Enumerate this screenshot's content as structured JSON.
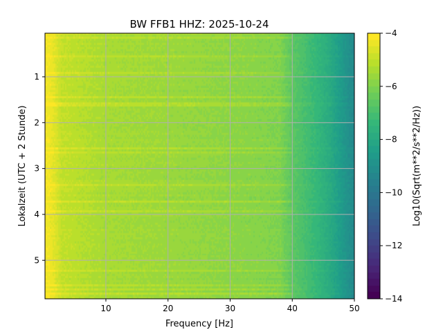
{
  "chart_data": {
    "type": "heatmap",
    "title": "BW FFB1  HHZ: 2025-10-24",
    "xlabel": "Frequency [Hz]",
    "ylabel": "Lokalzeit (UTC + 2 Stunde)",
    "xlim": [
      0.2,
      50
    ],
    "ylim": [
      5.84,
      0.05
    ],
    "xticks": [
      10,
      20,
      30,
      40,
      50
    ],
    "yticks": [
      1,
      2,
      3,
      4,
      5
    ],
    "grid": true,
    "colorbar": {
      "label": "Log10(Sqrt(m**2/s**2/Hz))",
      "range": [
        -14,
        -4
      ],
      "ticks": [
        -4,
        -6,
        -8,
        -10,
        -12,
        -14
      ],
      "tick_labels": [
        "−4",
        "−6",
        "−8",
        "−10",
        "−12",
        "−14"
      ],
      "colormap": "viridis",
      "levels": 40
    },
    "frequency_profile": {
      "frequency_hz": [
        0.2,
        1,
        2,
        3,
        5,
        8,
        10,
        15,
        20,
        25,
        30,
        35,
        38,
        40,
        42,
        44,
        46,
        48,
        50
      ],
      "log10_amplitude": [
        -4.3,
        -4.3,
        -4.6,
        -5.0,
        -5.1,
        -5.3,
        -5.4,
        -5.5,
        -5.6,
        -5.7,
        -5.8,
        -5.9,
        -6.0,
        -6.6,
        -7.0,
        -7.4,
        -7.9,
        -8.6,
        -9.3
      ]
    }
  }
}
